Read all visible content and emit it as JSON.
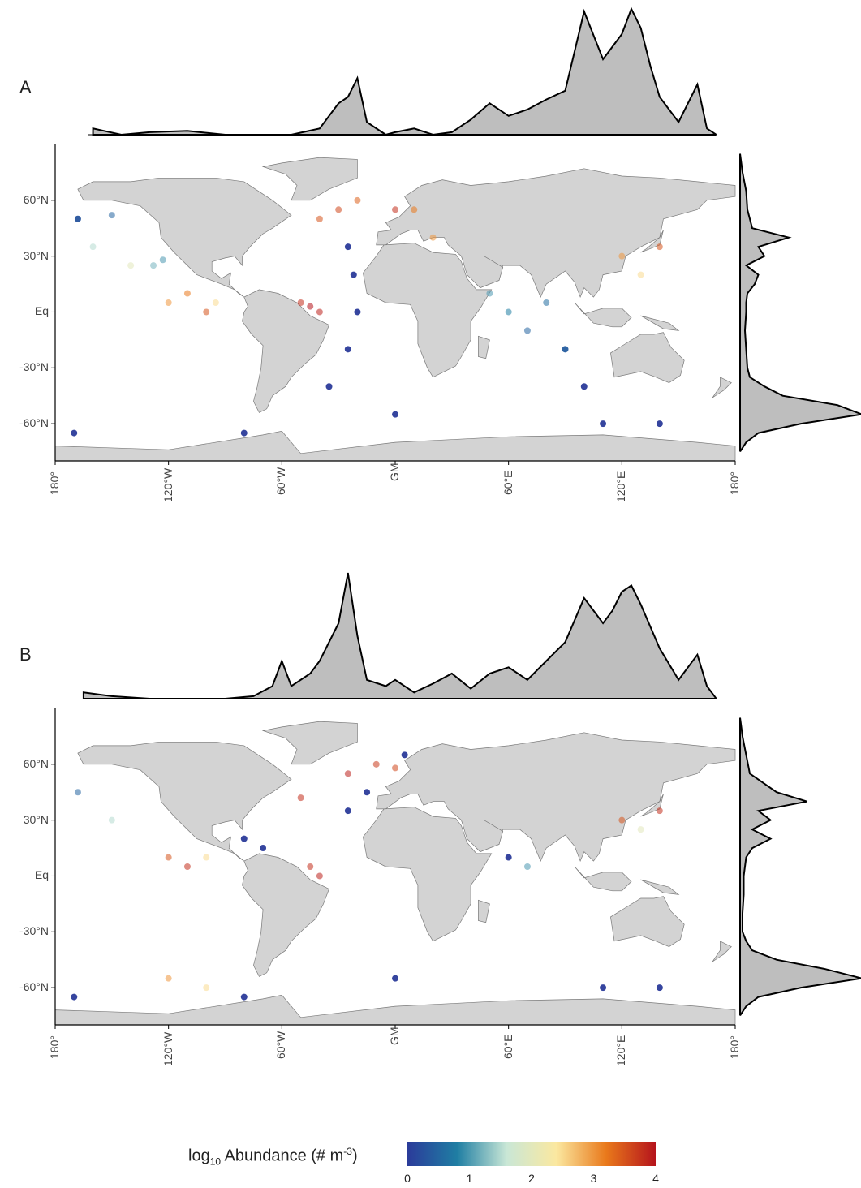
{
  "panels": [
    {
      "label": "A",
      "y_ticks": [
        "60°N",
        "30°N",
        "Eq",
        "-30°N",
        "-60°N"
      ],
      "x_ticks": [
        "180°",
        "120°W",
        "60°W",
        "GM",
        "60°E",
        "120°E",
        "180°"
      ]
    },
    {
      "label": "B",
      "y_ticks": [
        "60°N",
        "30°N",
        "Eq",
        "-30°N",
        "-60°N"
      ],
      "x_ticks": [
        "180°",
        "120°W",
        "60°W",
        "GM",
        "60°E",
        "120°E",
        "180°"
      ]
    }
  ],
  "legend": {
    "title_prefix": "log",
    "title_sub": "10",
    "title_main": " Abundance (# m",
    "title_sup": "-3",
    "title_suffix": ")",
    "ticks": [
      "0",
      "1",
      "2",
      "3",
      "4"
    ],
    "colors": [
      "#2b3b9a",
      "#1f7ea3",
      "#c9e7d6",
      "#fbe8a0",
      "#e9791b",
      "#b5141c"
    ]
  },
  "colors": {
    "land": "#d3d3d3",
    "land_border": "#7a7a7a",
    "density_fill": "#bebebe",
    "low": "#2c45a0",
    "mid": "#e8e0b0",
    "high": "#c0141c"
  },
  "chart_data": [
    {
      "type": "scatter",
      "panel": "A",
      "xlabel": "",
      "ylabel": "",
      "xlim": [
        -180,
        180
      ],
      "ylim": [
        -80,
        90
      ],
      "x_density": {
        "x": [
          -160,
          -145,
          -130,
          -110,
          -90,
          -70,
          -55,
          -40,
          -30,
          -25,
          -20,
          -15,
          -5,
          0,
          10,
          20,
          30,
          40,
          50,
          60,
          70,
          80,
          90,
          100,
          110,
          115,
          120,
          125,
          130,
          135,
          140,
          150,
          160,
          165,
          170
        ],
        "y": [
          0.05,
          0.0,
          0.02,
          0.03,
          0.0,
          0.0,
          0.0,
          0.05,
          0.25,
          0.3,
          0.45,
          0.1,
          0.0,
          0.02,
          0.05,
          0.0,
          0.02,
          0.12,
          0.25,
          0.15,
          0.2,
          0.28,
          0.35,
          0.98,
          0.6,
          0.7,
          0.8,
          1.0,
          0.85,
          0.55,
          0.3,
          0.1,
          0.4,
          0.05,
          0.0
        ]
      },
      "y_density": {
        "y": [
          85,
          75,
          65,
          55,
          45,
          40,
          35,
          30,
          25,
          20,
          15,
          10,
          5,
          0,
          -10,
          -20,
          -30,
          -35,
          -40,
          -45,
          -50,
          -55,
          -60,
          -65,
          -70,
          -75
        ],
        "x": [
          0.0,
          0.02,
          0.05,
          0.06,
          0.1,
          0.4,
          0.15,
          0.2,
          0.05,
          0.15,
          0.12,
          0.06,
          0.05,
          0.05,
          0.04,
          0.05,
          0.06,
          0.08,
          0.2,
          0.35,
          0.8,
          1.0,
          0.5,
          0.15,
          0.05,
          0.0
        ]
      },
      "points": [
        {
          "lon": -168,
          "lat": 50,
          "v": 0.3
        },
        {
          "lon": -160,
          "lat": 35,
          "v": 1.5
        },
        {
          "lon": -150,
          "lat": 52,
          "v": 0.5
        },
        {
          "lon": -140,
          "lat": 25,
          "v": 2.0
        },
        {
          "lon": -128,
          "lat": 25,
          "v": 1.2
        },
        {
          "lon": -123,
          "lat": 28,
          "v": 1.0
        },
        {
          "lon": -120,
          "lat": 5,
          "v": 3.0
        },
        {
          "lon": -110,
          "lat": 10,
          "v": 3.2
        },
        {
          "lon": -100,
          "lat": 0,
          "v": 3.5
        },
        {
          "lon": -95,
          "lat": 5,
          "v": 2.5
        },
        {
          "lon": -50,
          "lat": 5,
          "v": 3.8
        },
        {
          "lon": -45,
          "lat": 3,
          "v": 4.0
        },
        {
          "lon": -40,
          "lat": 0,
          "v": 3.9
        },
        {
          "lon": -25,
          "lat": 35,
          "v": 0.0
        },
        {
          "lon": -22,
          "lat": 20,
          "v": 0.0
        },
        {
          "lon": -20,
          "lat": 0,
          "v": 0.0
        },
        {
          "lon": -25,
          "lat": -20,
          "v": 0.0
        },
        {
          "lon": -35,
          "lat": -40,
          "v": 0.0
        },
        {
          "lon": -40,
          "lat": 50,
          "v": 3.5
        },
        {
          "lon": -30,
          "lat": 55,
          "v": 3.6
        },
        {
          "lon": -20,
          "lat": 60,
          "v": 3.4
        },
        {
          "lon": 0,
          "lat": 55,
          "v": 3.8
        },
        {
          "lon": 10,
          "lat": 55,
          "v": 3.2
        },
        {
          "lon": 20,
          "lat": 40,
          "v": 3.0
        },
        {
          "lon": 50,
          "lat": 10,
          "v": 1.0
        },
        {
          "lon": 60,
          "lat": 0,
          "v": 0.8
        },
        {
          "lon": 70,
          "lat": -10,
          "v": 0.5
        },
        {
          "lon": 80,
          "lat": 5,
          "v": 0.6
        },
        {
          "lon": 90,
          "lat": -20,
          "v": 0.4
        },
        {
          "lon": 100,
          "lat": -40,
          "v": 0.0
        },
        {
          "lon": 120,
          "lat": 30,
          "v": 3.0
        },
        {
          "lon": 130,
          "lat": 20,
          "v": 2.5
        },
        {
          "lon": 140,
          "lat": 35,
          "v": 3.5
        },
        {
          "lon": 110,
          "lat": -60,
          "v": 0.0
        },
        {
          "lon": 140,
          "lat": -60,
          "v": 0.0
        },
        {
          "lon": -170,
          "lat": -65,
          "v": 0.0
        },
        {
          "lon": -80,
          "lat": -65,
          "v": 0.0
        },
        {
          "lon": 0,
          "lat": -55,
          "v": 0.0
        }
      ]
    },
    {
      "type": "scatter",
      "panel": "B",
      "xlabel": "",
      "ylabel": "",
      "xlim": [
        -180,
        180
      ],
      "ylim": [
        -80,
        90
      ],
      "x_density": {
        "x": [
          -165,
          -150,
          -130,
          -110,
          -90,
          -75,
          -65,
          -60,
          -55,
          -45,
          -40,
          -30,
          -25,
          -20,
          -15,
          -5,
          0,
          10,
          20,
          30,
          40,
          50,
          60,
          70,
          80,
          90,
          100,
          110,
          115,
          120,
          125,
          130,
          140,
          150,
          160,
          165,
          170
        ],
        "y": [
          0.05,
          0.02,
          0.0,
          0.0,
          0.0,
          0.02,
          0.1,
          0.3,
          0.1,
          0.2,
          0.3,
          0.6,
          1.0,
          0.5,
          0.15,
          0.1,
          0.15,
          0.05,
          0.12,
          0.2,
          0.08,
          0.2,
          0.25,
          0.15,
          0.3,
          0.45,
          0.8,
          0.6,
          0.7,
          0.85,
          0.9,
          0.75,
          0.4,
          0.15,
          0.35,
          0.1,
          0.0
        ]
      },
      "y_density": {
        "y": [
          85,
          75,
          65,
          55,
          45,
          40,
          35,
          30,
          25,
          20,
          15,
          10,
          5,
          0,
          -10,
          -20,
          -30,
          -35,
          -40,
          -45,
          -50,
          -55,
          -60,
          -65,
          -70,
          -75
        ],
        "x": [
          0.0,
          0.02,
          0.05,
          0.08,
          0.3,
          0.55,
          0.15,
          0.25,
          0.1,
          0.25,
          0.1,
          0.05,
          0.04,
          0.03,
          0.03,
          0.02,
          0.02,
          0.05,
          0.1,
          0.3,
          0.7,
          1.0,
          0.5,
          0.15,
          0.05,
          0.0
        ]
      },
      "points": [
        {
          "lon": -168,
          "lat": 45,
          "v": 0.5
        },
        {
          "lon": -150,
          "lat": 30,
          "v": 1.5
        },
        {
          "lon": -120,
          "lat": 10,
          "v": 3.5
        },
        {
          "lon": -110,
          "lat": 5,
          "v": 3.8
        },
        {
          "lon": -100,
          "lat": 10,
          "v": 2.5
        },
        {
          "lon": -80,
          "lat": 20,
          "v": 0.0
        },
        {
          "lon": -70,
          "lat": 15,
          "v": 0.0
        },
        {
          "lon": -45,
          "lat": 5,
          "v": 3.8
        },
        {
          "lon": -40,
          "lat": 0,
          "v": 3.9
        },
        {
          "lon": -50,
          "lat": 42,
          "v": 3.8
        },
        {
          "lon": -25,
          "lat": 55,
          "v": 3.9
        },
        {
          "lon": -10,
          "lat": 60,
          "v": 3.7
        },
        {
          "lon": 0,
          "lat": 58,
          "v": 3.6
        },
        {
          "lon": -15,
          "lat": 45,
          "v": 0.0
        },
        {
          "lon": -25,
          "lat": 35,
          "v": 0.0
        },
        {
          "lon": 5,
          "lat": 65,
          "v": 0.0
        },
        {
          "lon": 60,
          "lat": 10,
          "v": 0.0
        },
        {
          "lon": 70,
          "lat": 5,
          "v": 1.0
        },
        {
          "lon": 120,
          "lat": 30,
          "v": 3.5
        },
        {
          "lon": 130,
          "lat": 25,
          "v": 2.0
        },
        {
          "lon": 140,
          "lat": 35,
          "v": 3.8
        },
        {
          "lon": 110,
          "lat": -60,
          "v": 0.0
        },
        {
          "lon": 140,
          "lat": -60,
          "v": 0.0
        },
        {
          "lon": -170,
          "lat": -65,
          "v": 0.0
        },
        {
          "lon": -80,
          "lat": -65,
          "v": 0.0
        },
        {
          "lon": 0,
          "lat": -55,
          "v": 0.0
        },
        {
          "lon": -120,
          "lat": -55,
          "v": 3.0
        },
        {
          "lon": -100,
          "lat": -60,
          "v": 2.5
        }
      ]
    }
  ]
}
